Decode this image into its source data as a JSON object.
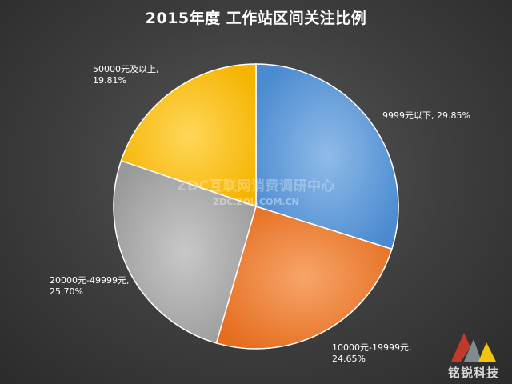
{
  "chart_data": {
    "type": "pie",
    "title": "2015年度 工作站区间关注比例",
    "slices": [
      {
        "label": "9999元以下",
        "value": 29.85,
        "text": "9999元以下, 29.85%",
        "color": "#5b9bd5"
      },
      {
        "label": "10000元-19999元",
        "value": 24.65,
        "text": "10000元-19999元,\n24.65%",
        "color": "#ed7d31"
      },
      {
        "label": "20000元-49999元",
        "value": 25.7,
        "text": "20000元-49999元,\n25.70%",
        "color": "#a5a5a5"
      },
      {
        "label": "50000元及以上",
        "value": 19.81,
        "text": "50000元及以上,\n19.81%",
        "color": "#ffc000"
      }
    ]
  },
  "watermark": {
    "line1": "ZDC互联网消费调研中心",
    "line2": "ZDC.ZOL.COM.CN"
  },
  "logo": {
    "text": "铭锐科技"
  }
}
